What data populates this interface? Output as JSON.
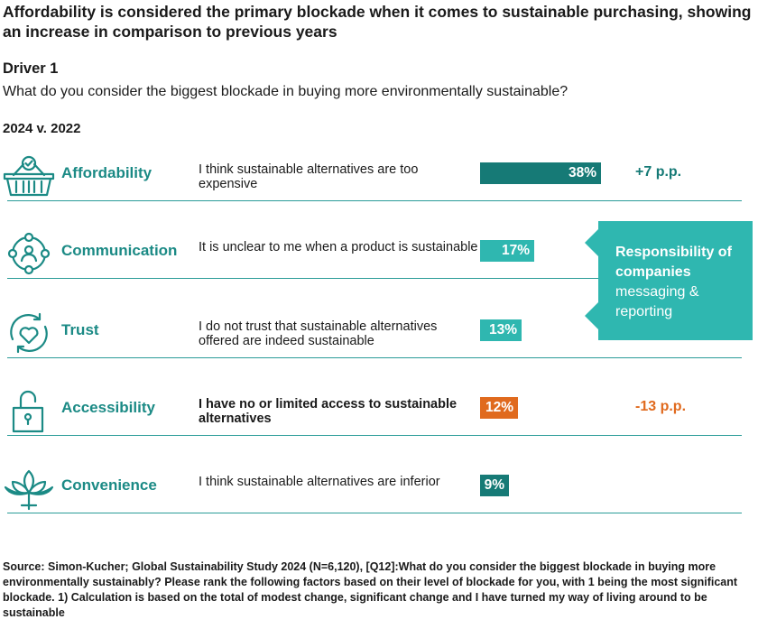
{
  "title": "Affordability is considered the primary blockade when it comes to sustainable purchasing, showing an increase in comparison to previous years",
  "driver": "Driver 1",
  "question": "What do you consider the biggest blockade in buying more environmentally sustainable?",
  "period": "2024 v. 2022",
  "callout": {
    "line1": "Responsibility of companies",
    "line2": "messaging & reporting"
  },
  "source": "Source: Simon-Kucher; Global Sustainability Study 2024 (N=6,120), [Q12]:What do you consider the biggest blockade in buying more environmentally sustainably? Please rank the following factors based on their level of blockade for you, with 1 being the most significant blockade. 1) Calculation is based on the total of modest change, significant change and I have turned my way of living around to be sustainable",
  "colors": {
    "teal_dark": "#167a76",
    "teal_light": "#2fb7b0",
    "orange": "#e06a1e",
    "category": "#1b8a85"
  },
  "chart_data": {
    "type": "bar",
    "orientation": "horizontal",
    "unit": "%",
    "xlim": [
      0,
      38
    ],
    "categories": [
      "Affordability",
      "Communication",
      "Trust",
      "Accessibility",
      "Convenience"
    ],
    "descriptions": [
      "I think sustainable alternatives are too expensive",
      "It is unclear to me when a product is sustainable",
      "I do not trust that sustainable alternatives offered are indeed sustainable",
      "I have no or limited access to sustainable alternatives",
      "I think sustainable alternatives are inferior"
    ],
    "values": [
      38,
      17,
      13,
      12,
      9
    ],
    "value_labels": [
      "38%",
      "17%",
      "13%",
      "12%",
      "9%"
    ],
    "changes": [
      "+7 p.p.",
      "",
      "",
      "-13 p.p.",
      ""
    ],
    "bar_colors": [
      "#167a76",
      "#2fb7b0",
      "#2fb7b0",
      "#e06a1e",
      "#167a76"
    ],
    "change_colors": [
      "#167a76",
      "",
      "",
      "#e06a1e",
      ""
    ],
    "bold_description": [
      false,
      false,
      false,
      true,
      false
    ],
    "icons": [
      "basket-check-icon",
      "people-network-icon",
      "heart-cycle-icon",
      "padlock-icon",
      "lotus-icon"
    ]
  }
}
